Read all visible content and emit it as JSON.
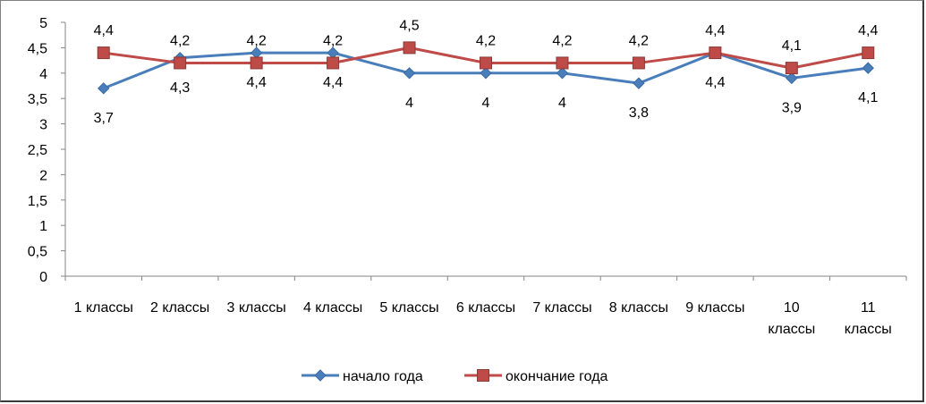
{
  "chart_data": {
    "type": "line",
    "categories": [
      "1 классы",
      "2 классы",
      "3 классы",
      "4 классы",
      "5 классы",
      "6 классы",
      "7 классы",
      "8 классы",
      "9 классы",
      "10 классы",
      "11 классы"
    ],
    "category_lines": [
      [
        "1 классы"
      ],
      [
        "2 классы"
      ],
      [
        "3 классы"
      ],
      [
        "4 классы"
      ],
      [
        "5 классы"
      ],
      [
        "6 классы"
      ],
      [
        "7 классы"
      ],
      [
        "8 классы"
      ],
      [
        "9 классы"
      ],
      [
        "10",
        "классы"
      ],
      [
        "11",
        "классы"
      ]
    ],
    "yticks": [
      "0",
      "0,5",
      "1",
      "1,5",
      "2",
      "2,5",
      "3",
      "3,5",
      "4",
      "4,5",
      "5"
    ],
    "ylim": [
      0,
      5
    ],
    "grid": false,
    "legend_position": "bottom",
    "series": [
      {
        "name": "начало года",
        "color": "#4a7ebb",
        "marker": "diamond",
        "values": [
          3.7,
          4.3,
          4.4,
          4.4,
          4.0,
          4.0,
          4.0,
          3.8,
          4.4,
          3.9,
          4.1
        ],
        "labels": [
          "3,7",
          "4,3",
          "4,4",
          "4,4",
          "4",
          "4",
          "4",
          "3,8",
          "4,4",
          "3,9",
          "4,1"
        ],
        "label_side": "below"
      },
      {
        "name": "окончание года",
        "color": "#be4b48",
        "marker": "square",
        "values": [
          4.4,
          4.2,
          4.2,
          4.2,
          4.5,
          4.2,
          4.2,
          4.2,
          4.4,
          4.1,
          4.4
        ],
        "labels": [
          "4,4",
          "4,2",
          "4,2",
          "4,2",
          "4,5",
          "4,2",
          "4,2",
          "4,2",
          "4,4",
          "4,1",
          "4,4"
        ],
        "label_side": "above"
      }
    ]
  }
}
